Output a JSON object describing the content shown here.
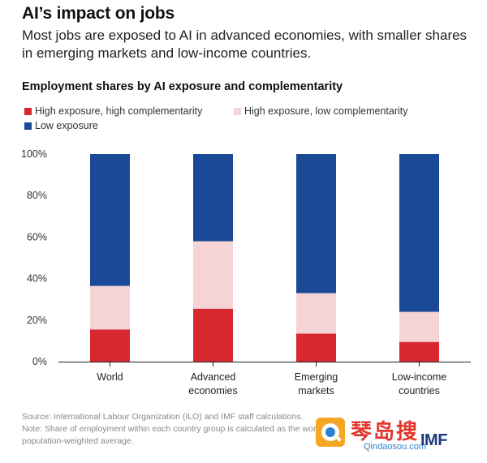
{
  "header": {
    "title": "AI’s impact on jobs",
    "subtitle": "Most jobs are exposed to AI in advanced economies, with smaller shares in emerging markets and low-income countries."
  },
  "legend": {
    "items": [
      {
        "label": "High exposure, high complementarity",
        "color": "#d7282f"
      },
      {
        "label": "High exposure, low complementarity",
        "color": "#f6d3d4"
      },
      {
        "label": "Low exposure",
        "color": "#1a4a97"
      }
    ]
  },
  "chart_data": {
    "type": "bar",
    "stacked": true,
    "title": "Employment shares by AI exposure and complementarity",
    "categories": [
      "World",
      "Advanced\neconomies",
      "Emerging\nmarkets",
      "Low-income\ncountries"
    ],
    "series": [
      {
        "name": "High exposure, high complementarity",
        "color": "#d7282f",
        "values": [
          15.5,
          25.5,
          13.5,
          9.5
        ]
      },
      {
        "name": "High exposure, low complementarity",
        "color": "#f6d3d4",
        "values": [
          21,
          32.5,
          19.5,
          14.5
        ]
      },
      {
        "name": "Low exposure",
        "color": "#1a4a97",
        "values": [
          63.5,
          42,
          67,
          76
        ]
      }
    ],
    "ylim": [
      0,
      100
    ],
    "yticks": [
      "0%",
      "20%",
      "40%",
      "60%",
      "80%",
      "100%"
    ],
    "grid": false,
    "legend_position": "top-left"
  },
  "notes": {
    "source": "Source: International Labour Organization (ILO) and IMF staff calculations.",
    "note_line1": "Note: Share of employment within each country group is calculated as the working-age",
    "note_line2": "population-weighted average."
  },
  "watermark": {
    "chinese": "琴岛搜",
    "domain": "Qindaosou.com",
    "brand": "IMF"
  }
}
